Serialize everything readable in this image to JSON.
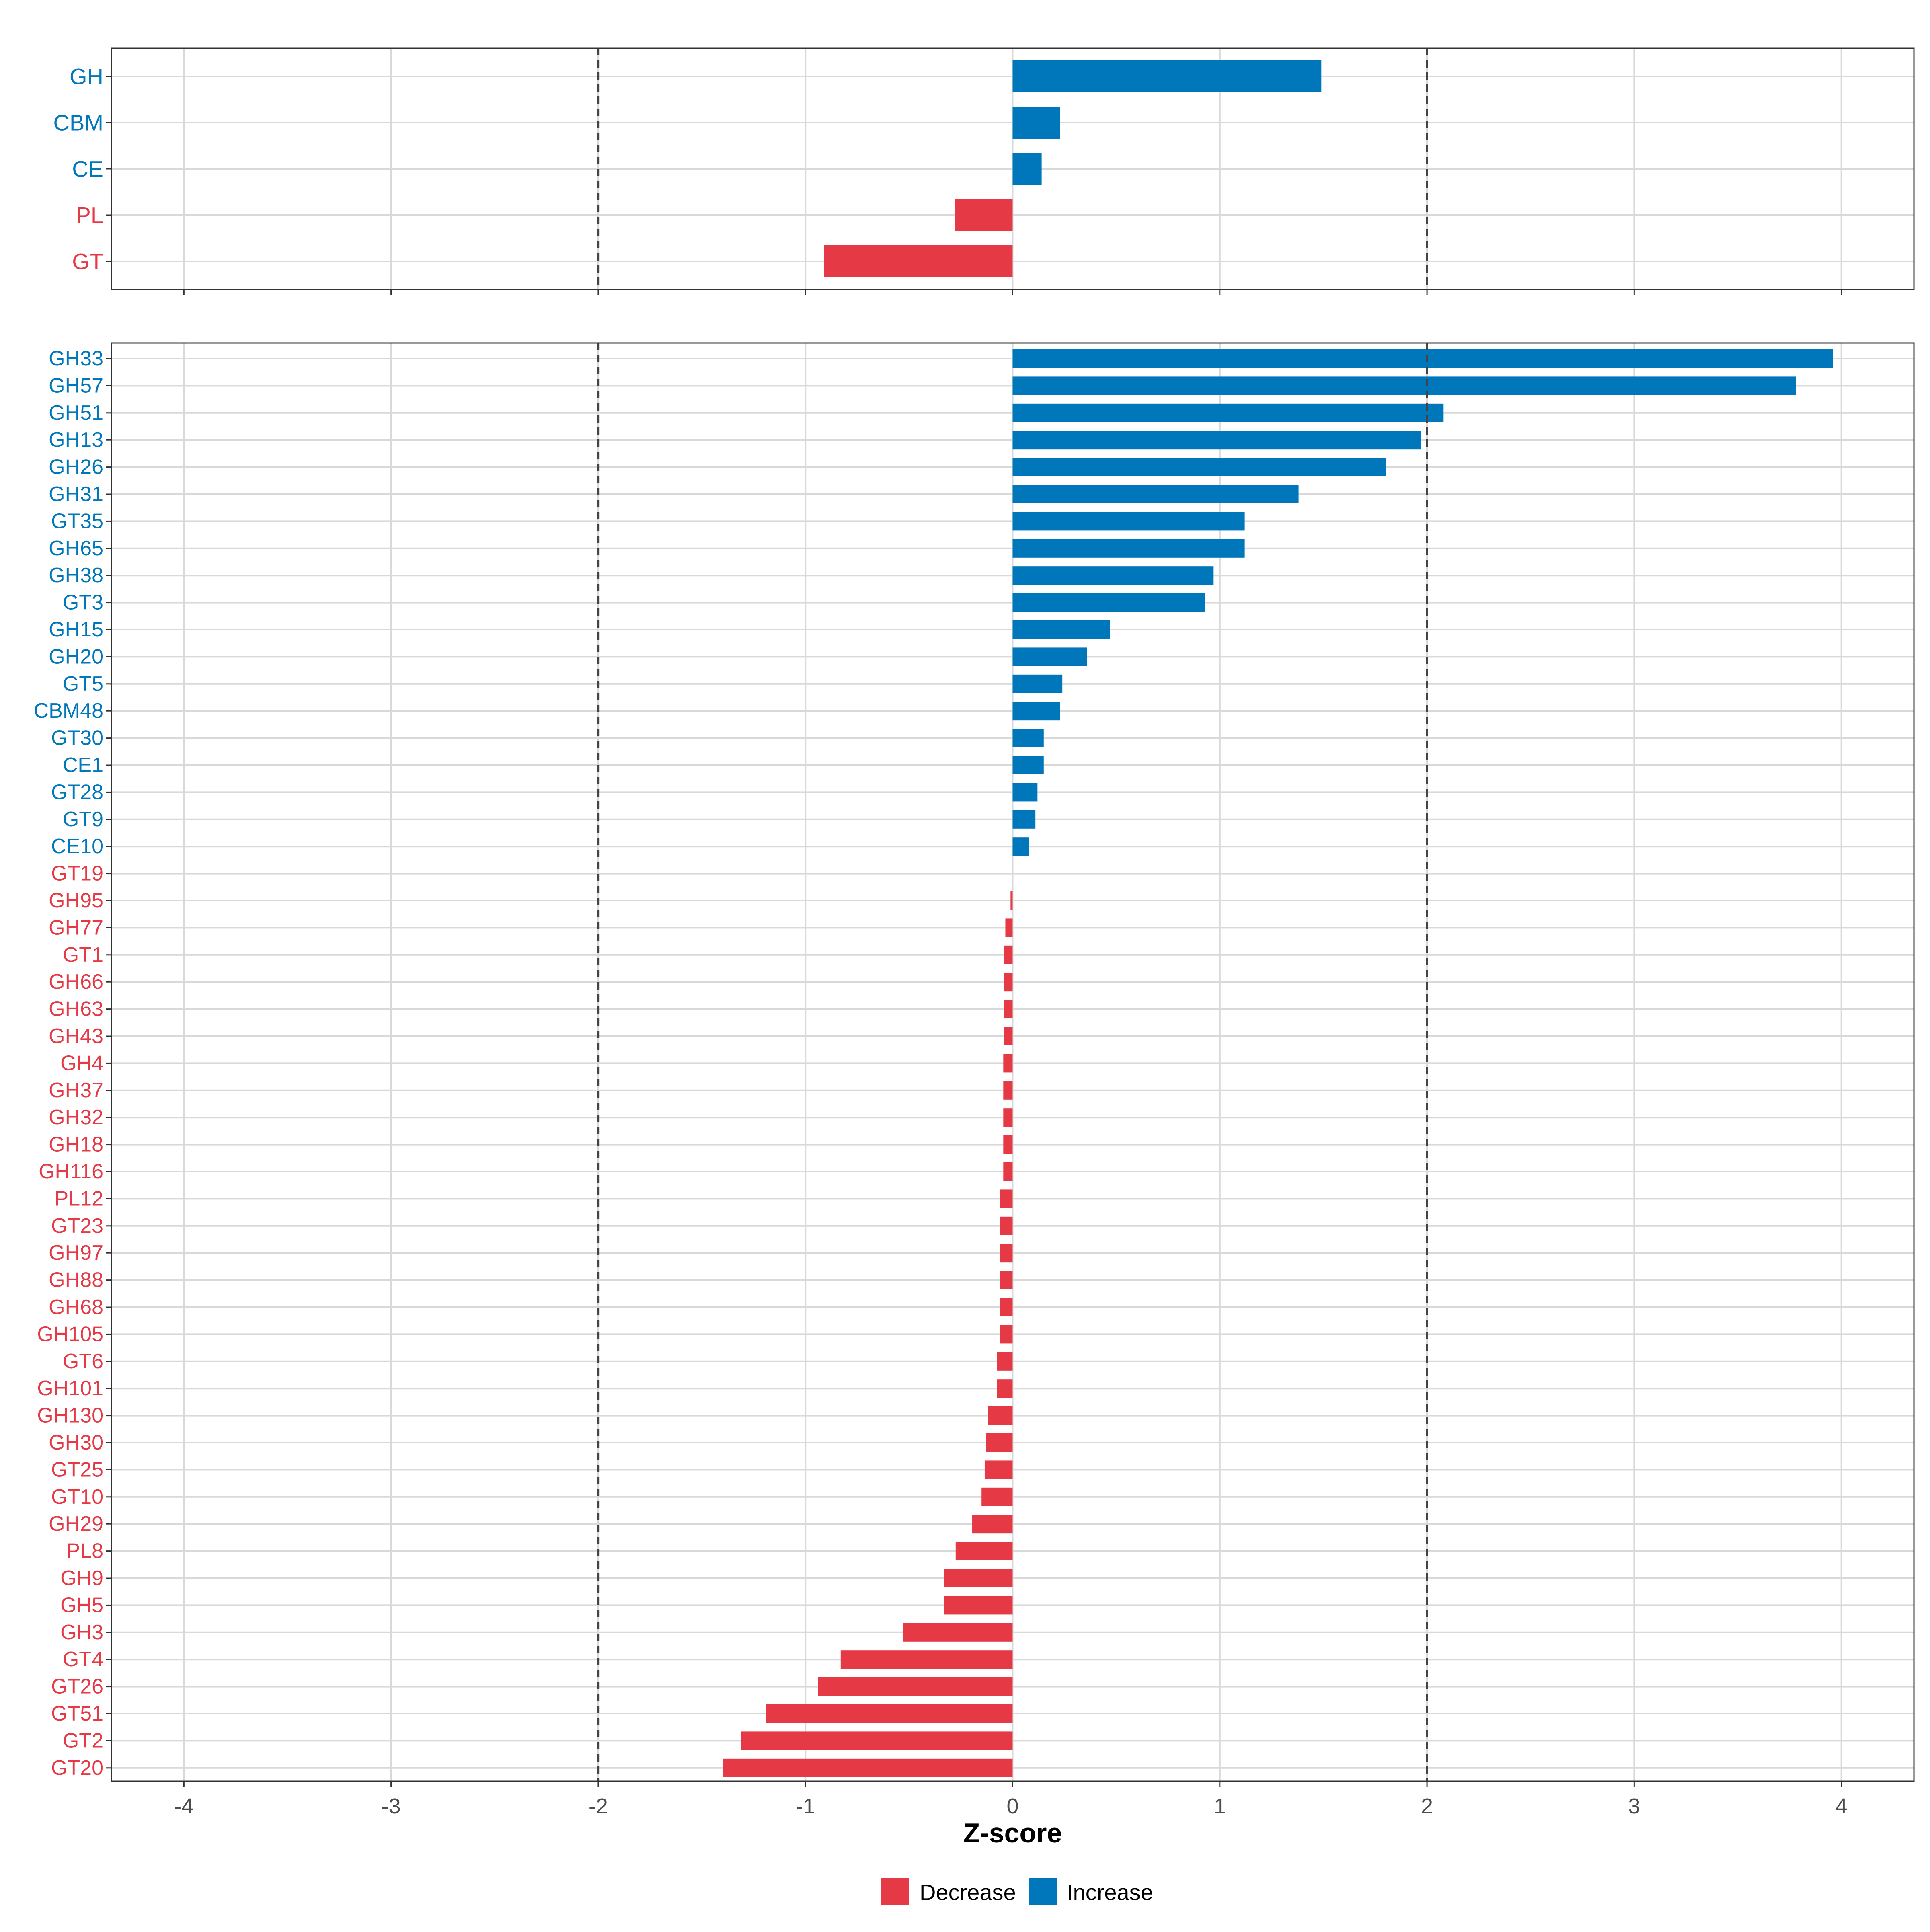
{
  "chart_data": [
    {
      "type": "bar",
      "orientation": "horizontal",
      "panel": "top",
      "title": "",
      "xlabel": "",
      "ylabel": "",
      "xlim": [
        -4.35,
        4.35
      ],
      "grid": true,
      "reference_lines": [
        -2,
        2
      ],
      "show_x_tick_labels": false,
      "categories": [
        "GH",
        "CBM",
        "CE",
        "PL",
        "GT"
      ],
      "values": [
        1.49,
        0.23,
        0.14,
        -0.28,
        -0.91
      ],
      "direction": [
        "Increase",
        "Increase",
        "Increase",
        "Decrease",
        "Decrease"
      ]
    },
    {
      "type": "bar",
      "orientation": "horizontal",
      "panel": "bottom",
      "title": "",
      "xlabel": "Z-score",
      "ylabel": "",
      "xlim": [
        -4.35,
        4.35
      ],
      "grid": true,
      "reference_lines": [
        -2,
        2
      ],
      "show_x_tick_labels": true,
      "x_ticks": [
        -4,
        -3,
        -2,
        -1,
        0,
        1,
        2,
        3,
        4
      ],
      "x_tick_labels": [
        "-4",
        "-3",
        "-2",
        "-1",
        "0",
        "1",
        "2",
        "3",
        "4"
      ],
      "categories": [
        "GH33",
        "GH57",
        "GH51",
        "GH13",
        "GH26",
        "GH31",
        "GT35",
        "GH65",
        "GH38",
        "GT3",
        "GH15",
        "GH20",
        "GT5",
        "CBM48",
        "GT30",
        "CE1",
        "GT28",
        "GT9",
        "CE10",
        "GT19",
        "GH95",
        "GH77",
        "GT1",
        "GH66",
        "GH63",
        "GH43",
        "GH4",
        "GH37",
        "GH32",
        "GH18",
        "GH116",
        "PL12",
        "GT23",
        "GH97",
        "GH88",
        "GH68",
        "GH105",
        "GT6",
        "GH101",
        "GH130",
        "GH30",
        "GT25",
        "GT10",
        "GH29",
        "PL8",
        "GH9",
        "GH5",
        "GH3",
        "GT4",
        "GT26",
        "GT51",
        "GT2",
        "GT20"
      ],
      "values": [
        3.96,
        3.78,
        2.08,
        1.97,
        1.8,
        1.38,
        1.12,
        1.12,
        0.97,
        0.93,
        0.47,
        0.36,
        0.24,
        0.23,
        0.15,
        0.15,
        0.12,
        0.11,
        0.08,
        0.0,
        -0.01,
        -0.035,
        -0.04,
        -0.04,
        -0.04,
        -0.04,
        -0.045,
        -0.045,
        -0.045,
        -0.045,
        -0.045,
        -0.06,
        -0.06,
        -0.06,
        -0.06,
        -0.06,
        -0.06,
        -0.075,
        -0.075,
        -0.12,
        -0.13,
        -0.135,
        -0.15,
        -0.195,
        -0.275,
        -0.33,
        -0.33,
        -0.53,
        -0.83,
        -0.94,
        -1.19,
        -1.31,
        -1.4
      ],
      "direction": [
        "Increase",
        "Increase",
        "Increase",
        "Increase",
        "Increase",
        "Increase",
        "Increase",
        "Increase",
        "Increase",
        "Increase",
        "Increase",
        "Increase",
        "Increase",
        "Increase",
        "Increase",
        "Increase",
        "Increase",
        "Increase",
        "Increase",
        "Decrease",
        "Decrease",
        "Decrease",
        "Decrease",
        "Decrease",
        "Decrease",
        "Decrease",
        "Decrease",
        "Decrease",
        "Decrease",
        "Decrease",
        "Decrease",
        "Decrease",
        "Decrease",
        "Decrease",
        "Decrease",
        "Decrease",
        "Decrease",
        "Decrease",
        "Decrease",
        "Decrease",
        "Decrease",
        "Decrease",
        "Decrease",
        "Decrease",
        "Decrease",
        "Decrease",
        "Decrease",
        "Decrease",
        "Decrease",
        "Decrease",
        "Decrease",
        "Decrease",
        "Decrease"
      ]
    }
  ],
  "legend": {
    "placement": "bottom",
    "items": [
      {
        "key": "Decrease",
        "label": "Decrease",
        "color": "#E63946"
      },
      {
        "key": "Increase",
        "label": "Increase",
        "color": "#0077BB"
      }
    ]
  },
  "colors": {
    "increase": "#0077BB",
    "decrease": "#E63946",
    "grid": "#D9D9D9",
    "panel_border": "#333333",
    "reference_line": "#444444",
    "axis_text": "#4D4D4D",
    "axis_title": "#000000"
  }
}
